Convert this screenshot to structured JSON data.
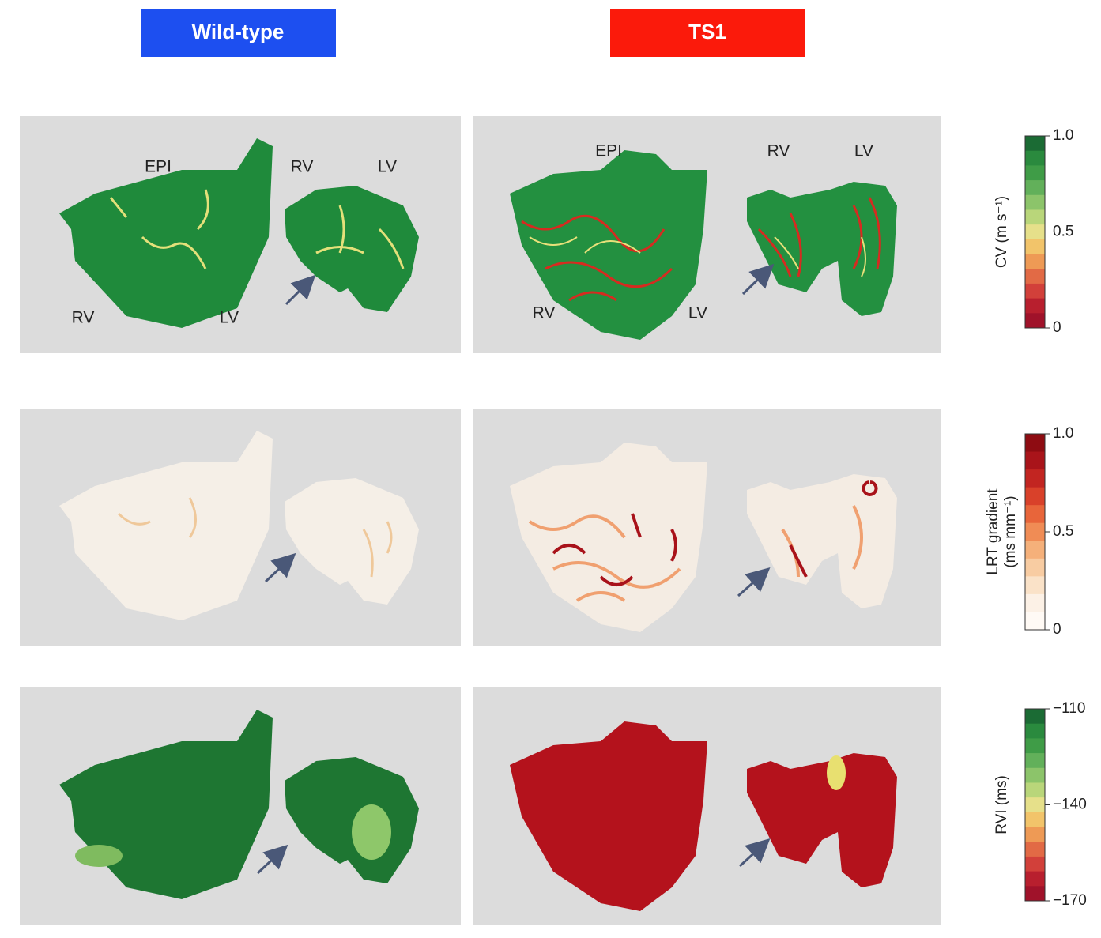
{
  "header": {
    "wild_type": "Wild-type",
    "ts1": "TS1"
  },
  "labels": {
    "wild_type": [
      "EPI",
      "RV",
      "LV",
      "RV",
      "LV"
    ],
    "ts1": [
      "EPI",
      "RV",
      "LV",
      "RV",
      "LV"
    ]
  },
  "colorbars": [
    {
      "title": [
        "CV (m s⁻¹)"
      ],
      "lim": [
        0,
        1
      ],
      "ticks": [
        {
          "value": 1,
          "label": "1.0"
        },
        0.5,
        0
      ],
      "colors": [
        "#1b6b34",
        "#2a8a3e",
        "#3f9c47",
        "#62b05a",
        "#8cc46a",
        "#b9d67a",
        "#e6e08a",
        "#f2c46a",
        "#ee9a55",
        "#e26a45",
        "#d2403a",
        "#b81f2e",
        "#a0122a"
      ]
    },
    {
      "title": [
        "LRT gradient",
        "(ms mm⁻¹)"
      ],
      "lim": [
        0,
        1
      ],
      "ticks": [
        {
          "value": 1,
          "label": "1.0"
        },
        0.5,
        0
      ],
      "colors": [
        "#8e0c12",
        "#a9141a",
        "#c22521",
        "#d9412a",
        "#e8653a",
        "#f08c55",
        "#f5b07a",
        "#f8ccA2",
        "#fae2c8",
        "#fcf1e6",
        "#fffaf5"
      ]
    },
    {
      "title": [
        "RVI (ms)"
      ],
      "lim": [
        -170,
        -110
      ],
      "ticks": [
        {
          "value": -110,
          "label": "−110"
        },
        {
          "value": -140,
          "label": "−140"
        },
        {
          "value": -170,
          "label": "−170"
        }
      ],
      "colors": [
        "#1b6b34",
        "#2a8a3e",
        "#3f9c47",
        "#62b05a",
        "#8cc46a",
        "#b9d67a",
        "#e6e08a",
        "#f2c46a",
        "#ee9a55",
        "#e26a45",
        "#d2403a",
        "#b81f2e",
        "#a0122a"
      ]
    }
  ]
}
